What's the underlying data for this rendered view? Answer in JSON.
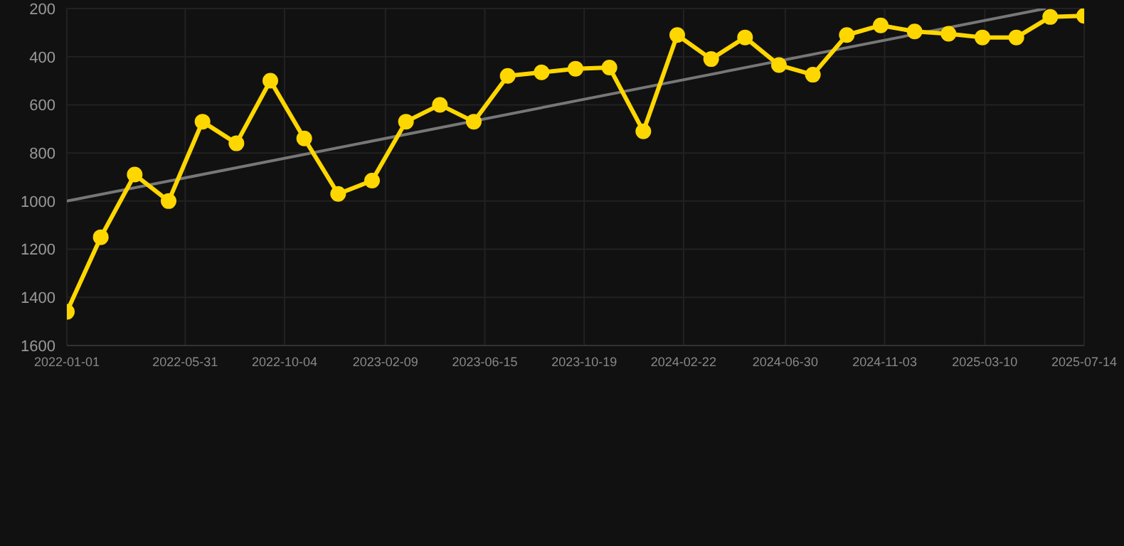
{
  "chart_data": {
    "type": "line",
    "x": [
      "2022-01-01",
      "2022-02-13",
      "2022-03-28",
      "2022-05-10",
      "2022-06-22",
      "2022-08-04",
      "2022-09-16",
      "2022-10-29",
      "2022-12-11",
      "2023-01-23",
      "2023-03-07",
      "2023-04-19",
      "2023-06-01",
      "2023-07-14",
      "2023-08-26",
      "2023-10-08",
      "2023-11-20",
      "2024-01-02",
      "2024-02-14",
      "2024-03-28",
      "2024-05-10",
      "2024-06-22",
      "2024-08-04",
      "2024-09-16",
      "2024-10-29",
      "2024-12-11",
      "2025-01-23",
      "2025-03-07",
      "2025-04-19",
      "2025-06-01",
      "2025-07-14"
    ],
    "series": [
      {
        "color": "#ffd700",
        "marker": "circle",
        "values": [
          1460,
          1150,
          890,
          1000,
          670,
          760,
          500,
          740,
          970,
          915,
          670,
          600,
          670,
          480,
          465,
          450,
          445,
          710,
          310,
          410,
          320,
          435,
          475,
          310,
          270,
          295,
          305,
          320,
          320,
          235,
          230
        ]
      },
      {
        "type": "line",
        "color": "#777777",
        "marker": "none",
        "x": [
          "2022-01-01",
          "2025-05-26"
        ],
        "values": [
          1000,
          200
        ]
      }
    ],
    "xlim": [
      "2022-01-01",
      "2025-07-14"
    ],
    "xticks": [
      "2022-01-01",
      "2022-05-31",
      "2022-10-04",
      "2023-02-09",
      "2023-06-15",
      "2023-10-19",
      "2024-02-22",
      "2024-06-30",
      "2024-11-03",
      "2025-03-10",
      "2025-07-14"
    ],
    "ylim": [
      1600,
      200
    ],
    "yticks": [
      200,
      400,
      600,
      800,
      1000,
      1200,
      1400,
      1600
    ],
    "grid": true,
    "line_style": "solid"
  }
}
